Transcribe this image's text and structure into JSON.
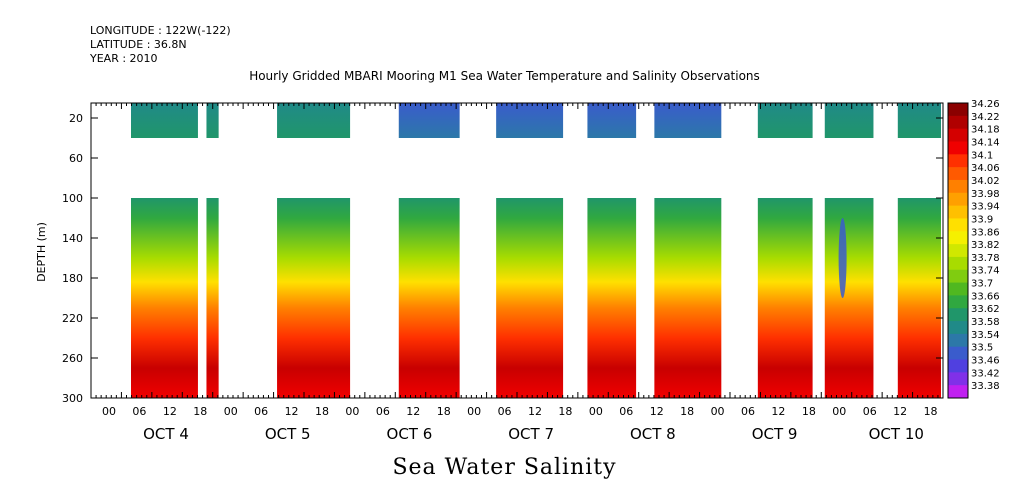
{
  "header": {
    "longitude": "LONGITUDE : 122W(-122)",
    "latitude": "LATITUDE : 36.8N",
    "year": "YEAR : 2010"
  },
  "chart_data": {
    "type": "heatmap",
    "title": "Hourly Gridded MBARI Mooring M1 Sea Water Temperature and Salinity Observations",
    "xlabel": "",
    "ylabel": "DEPTH (m)",
    "bottom_title": "Sea Water Salinity",
    "x_hours": [
      0,
      6,
      12,
      18,
      0,
      6,
      12,
      18,
      0,
      6,
      12,
      18,
      0,
      6,
      12,
      18,
      0,
      6,
      12,
      18,
      0,
      6,
      12,
      18,
      0,
      6,
      12,
      18
    ],
    "x_hour_labels": [
      "00",
      "06",
      "12",
      "18",
      "00",
      "06",
      "12",
      "18",
      "00",
      "06",
      "12",
      "18",
      "00",
      "06",
      "12",
      "18",
      "00",
      "06",
      "12",
      "18",
      "00",
      "06",
      "12",
      "18",
      "00",
      "06",
      "12",
      "18"
    ],
    "day_labels": [
      "OCT  4",
      "OCT  5",
      "OCT  6",
      "OCT  7",
      "OCT  8",
      "OCT  9",
      "OCT 10"
    ],
    "y_ticks": [
      20,
      60,
      100,
      140,
      180,
      220,
      260,
      300
    ],
    "ylim": [
      0,
      300
    ],
    "y_inverted": true,
    "colorbar": {
      "levels": [
        34.26,
        34.22,
        34.18,
        34.14,
        34.1,
        34.06,
        34.02,
        33.98,
        33.94,
        33.9,
        33.86,
        33.82,
        33.78,
        33.74,
        33.7,
        33.66,
        33.62,
        33.58,
        33.54,
        33.5,
        33.46,
        33.42,
        33.38
      ],
      "labels": [
        "34.26",
        "34.22",
        "34.18",
        "34.14",
        "34.1",
        "34.06",
        "34.02",
        "33.98",
        "33.94",
        "33.9",
        "33.86",
        "33.82",
        "33.78",
        "33.74",
        "33.7",
        "33.66",
        "33.62",
        "33.58",
        "33.54",
        "33.5",
        "33.46",
        "33.42",
        "33.38"
      ],
      "colors": [
        "#8b0000",
        "#b00000",
        "#d40000",
        "#f00000",
        "#ff3000",
        "#ff5a00",
        "#ff8000",
        "#ffa000",
        "#ffc000",
        "#ffe000",
        "#f5f000",
        "#d0e800",
        "#a8dc00",
        "#80cc10",
        "#50b820",
        "#30a840",
        "#20966a",
        "#208a88",
        "#2c78a8",
        "#3a5ccc",
        "#5040e0",
        "#8030e8",
        "#c020f0"
      ]
    },
    "z_range": [
      33.38,
      34.26
    ],
    "depth_profile": [
      {
        "depth": 20,
        "value": 33.64
      },
      {
        "depth": 100,
        "value": 33.82
      },
      {
        "depth": 140,
        "value": 33.98
      },
      {
        "depth": 180,
        "value": 34.06
      },
      {
        "depth": 220,
        "value": 34.14
      },
      {
        "depth": 260,
        "value": 34.24
      },
      {
        "depth": 300,
        "value": 34.16
      }
    ],
    "data_segments_days": [
      [
        0.0,
        0.55
      ],
      [
        0.62,
        0.72
      ],
      [
        1.2,
        1.8
      ],
      [
        2.2,
        2.7
      ],
      [
        3.0,
        3.55
      ],
      [
        3.75,
        4.15
      ],
      [
        4.3,
        4.85
      ],
      [
        5.15,
        5.6
      ],
      [
        5.7,
        6.1
      ],
      [
        6.3,
        6.88
      ]
    ]
  }
}
